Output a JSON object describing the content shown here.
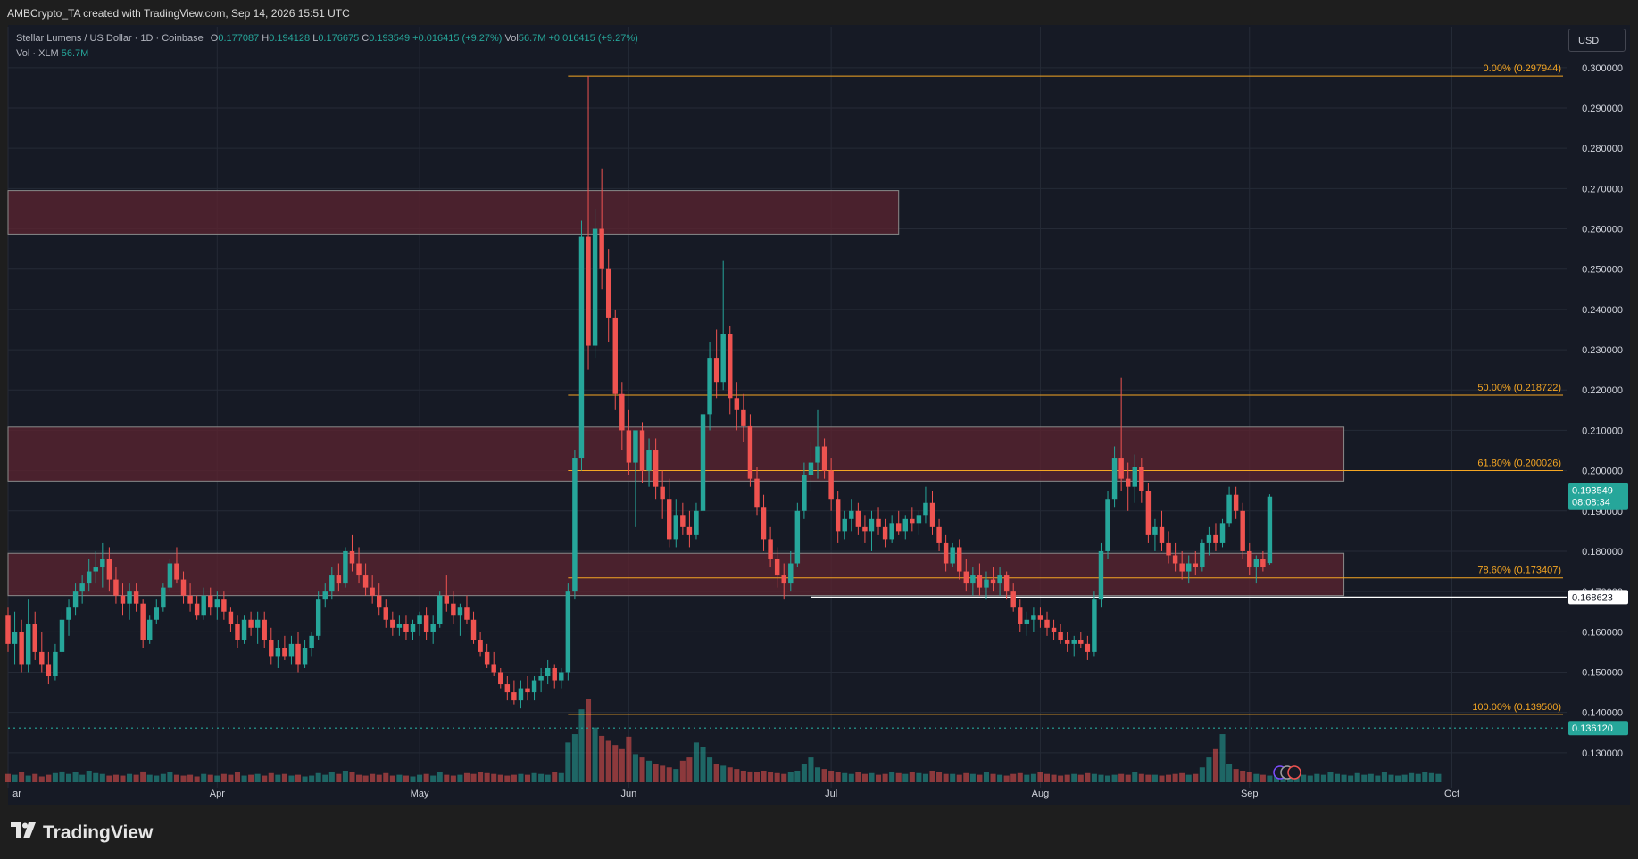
{
  "header": {
    "caption": "AMBCrypto_TA created with TradingView.com, Sep 14, 2026 15:51 UTC"
  },
  "legend": {
    "symbol": "Stellar Lumens / US Dollar · 1D · Coinbase",
    "o_label": "O",
    "o_value": "0.177087",
    "h_label": "H",
    "h_value": "0.194128",
    "l_label": "L",
    "l_value": "0.176675",
    "c_label": "C",
    "c_value": "0.193549",
    "change": "+0.016415 (+9.27%)",
    "vol_label": "Vol",
    "vol_value": "56.7M",
    "vol_change": "+0.016415 (+9.27%)",
    "vol_line_label": "Vol · XLM",
    "vol_line_value": "56.7M"
  },
  "toolbar": {
    "currency_label": "USD"
  },
  "brand": {
    "name": "TradingView"
  },
  "colors": {
    "background": "#161a25",
    "up": "#26a69a",
    "down": "#ef5350",
    "fib": "#f5a623",
    "zone": "#5a2430",
    "grid": "#252a36"
  },
  "chart_data": {
    "type": "candlestick",
    "title": "Stellar Lumens / US Dollar · 1D · Coinbase",
    "ylim": [
      0.122,
      0.3035
    ],
    "y_ticks": [
      "0.300000",
      "0.290000",
      "0.280000",
      "0.270000",
      "0.260000",
      "0.250000",
      "0.240000",
      "0.230000",
      "0.220000",
      "0.210000",
      "0.200000",
      "0.190000",
      "0.180000",
      "0.170000",
      "0.160000",
      "0.150000",
      "0.140000",
      "0.130000"
    ],
    "y_tick_values": [
      0.3,
      0.29,
      0.28,
      0.27,
      0.26,
      0.25,
      0.24,
      0.23,
      0.22,
      0.21,
      0.2,
      0.19,
      0.18,
      0.17,
      0.16,
      0.15,
      0.14,
      0.13
    ],
    "x_labels": [
      "ar",
      "Apr",
      "May",
      "Jun",
      "Jul",
      "Aug",
      "Sep",
      "Oct"
    ],
    "x_label_days": [
      0,
      31,
      61,
      92,
      122,
      153,
      184,
      214
    ],
    "day_range": [
      0,
      231
    ],
    "last_price": {
      "value": 0.193549,
      "label": "0.193549",
      "countdown": "08:08:34"
    },
    "support_line": {
      "value": 0.168623,
      "label": "0.168623",
      "start_day": 119
    },
    "dotted_line": {
      "value": 0.13612,
      "label": "0.136120"
    },
    "fib_levels": [
      {
        "label": "0.00% (0.297944)",
        "value": 0.297944
      },
      {
        "label": "50.00% (0.218722)",
        "value": 0.218722
      },
      {
        "label": "61.80% (0.200026)",
        "value": 0.200026
      },
      {
        "label": "78.60% (0.173407)",
        "value": 0.173407
      },
      {
        "label": "100.00% (0.139500)",
        "value": 0.1395
      }
    ],
    "fib_start_day": 83,
    "zones": [
      {
        "top": 0.2695,
        "bottom": 0.2587,
        "start_day": 0,
        "end_day": 132
      },
      {
        "top": 0.2108,
        "bottom": 0.1974,
        "start_day": 0,
        "end_day": 198
      },
      {
        "top": 0.1795,
        "bottom": 0.169,
        "start_day": 0,
        "end_day": 198
      }
    ],
    "ohlc": [
      [
        0.164,
        0.166,
        0.155,
        0.157
      ],
      [
        0.157,
        0.165,
        0.152,
        0.16
      ],
      [
        0.16,
        0.163,
        0.15,
        0.152
      ],
      [
        0.152,
        0.168,
        0.15,
        0.162
      ],
      [
        0.162,
        0.165,
        0.153,
        0.155
      ],
      [
        0.155,
        0.16,
        0.15,
        0.152
      ],
      [
        0.152,
        0.155,
        0.147,
        0.149
      ],
      [
        0.149,
        0.157,
        0.148,
        0.155
      ],
      [
        0.155,
        0.165,
        0.154,
        0.163
      ],
      [
        0.163,
        0.168,
        0.159,
        0.166
      ],
      [
        0.166,
        0.172,
        0.164,
        0.17
      ],
      [
        0.17,
        0.174,
        0.167,
        0.172
      ],
      [
        0.172,
        0.178,
        0.17,
        0.175
      ],
      [
        0.175,
        0.18,
        0.172,
        0.176
      ],
      [
        0.176,
        0.182,
        0.171,
        0.178
      ],
      [
        0.178,
        0.181,
        0.17,
        0.173
      ],
      [
        0.173,
        0.176,
        0.167,
        0.169
      ],
      [
        0.169,
        0.172,
        0.164,
        0.167
      ],
      [
        0.167,
        0.172,
        0.163,
        0.17
      ],
      [
        0.17,
        0.172,
        0.165,
        0.167
      ],
      [
        0.167,
        0.168,
        0.156,
        0.158
      ],
      [
        0.158,
        0.164,
        0.157,
        0.163
      ],
      [
        0.163,
        0.168,
        0.162,
        0.166
      ],
      [
        0.166,
        0.172,
        0.165,
        0.171
      ],
      [
        0.171,
        0.178,
        0.17,
        0.177
      ],
      [
        0.177,
        0.181,
        0.172,
        0.173
      ],
      [
        0.173,
        0.175,
        0.167,
        0.169
      ],
      [
        0.169,
        0.172,
        0.165,
        0.167
      ],
      [
        0.167,
        0.169,
        0.163,
        0.164
      ],
      [
        0.164,
        0.171,
        0.163,
        0.169
      ],
      [
        0.169,
        0.171,
        0.164,
        0.166
      ],
      [
        0.166,
        0.17,
        0.163,
        0.168
      ],
      [
        0.168,
        0.17,
        0.163,
        0.165
      ],
      [
        0.165,
        0.166,
        0.16,
        0.162
      ],
      [
        0.162,
        0.164,
        0.156,
        0.158
      ],
      [
        0.158,
        0.164,
        0.157,
        0.163
      ],
      [
        0.163,
        0.165,
        0.159,
        0.161
      ],
      [
        0.161,
        0.165,
        0.157,
        0.163
      ],
      [
        0.163,
        0.165,
        0.156,
        0.158
      ],
      [
        0.158,
        0.161,
        0.152,
        0.154
      ],
      [
        0.154,
        0.158,
        0.151,
        0.156
      ],
      [
        0.156,
        0.159,
        0.153,
        0.154
      ],
      [
        0.154,
        0.159,
        0.152,
        0.157
      ],
      [
        0.157,
        0.16,
        0.15,
        0.152
      ],
      [
        0.152,
        0.158,
        0.151,
        0.156
      ],
      [
        0.156,
        0.16,
        0.154,
        0.159
      ],
      [
        0.159,
        0.17,
        0.158,
        0.168
      ],
      [
        0.168,
        0.172,
        0.166,
        0.17
      ],
      [
        0.17,
        0.176,
        0.168,
        0.174
      ],
      [
        0.174,
        0.177,
        0.17,
        0.172
      ],
      [
        0.172,
        0.181,
        0.171,
        0.18
      ],
      [
        0.18,
        0.184,
        0.175,
        0.177
      ],
      [
        0.177,
        0.181,
        0.172,
        0.174
      ],
      [
        0.174,
        0.177,
        0.169,
        0.171
      ],
      [
        0.171,
        0.174,
        0.167,
        0.169
      ],
      [
        0.169,
        0.172,
        0.164,
        0.166
      ],
      [
        0.166,
        0.168,
        0.161,
        0.163
      ],
      [
        0.163,
        0.165,
        0.159,
        0.161
      ],
      [
        0.161,
        0.164,
        0.159,
        0.162
      ],
      [
        0.162,
        0.164,
        0.158,
        0.16
      ],
      [
        0.16,
        0.163,
        0.158,
        0.162
      ],
      [
        0.162,
        0.165,
        0.159,
        0.164
      ],
      [
        0.164,
        0.166,
        0.158,
        0.16
      ],
      [
        0.16,
        0.164,
        0.157,
        0.162
      ],
      [
        0.162,
        0.17,
        0.161,
        0.169
      ],
      [
        0.169,
        0.174,
        0.165,
        0.167
      ],
      [
        0.167,
        0.17,
        0.162,
        0.164
      ],
      [
        0.164,
        0.167,
        0.159,
        0.166
      ],
      [
        0.166,
        0.169,
        0.162,
        0.163
      ],
      [
        0.163,
        0.165,
        0.157,
        0.158
      ],
      [
        0.158,
        0.16,
        0.154,
        0.155
      ],
      [
        0.155,
        0.157,
        0.151,
        0.152
      ],
      [
        0.152,
        0.155,
        0.149,
        0.15
      ],
      [
        0.15,
        0.151,
        0.146,
        0.147
      ],
      [
        0.147,
        0.149,
        0.143,
        0.145
      ],
      [
        0.145,
        0.148,
        0.142,
        0.143
      ],
      [
        0.143,
        0.148,
        0.141,
        0.146
      ],
      [
        0.146,
        0.149,
        0.143,
        0.145
      ],
      [
        0.145,
        0.149,
        0.143,
        0.148
      ],
      [
        0.148,
        0.151,
        0.145,
        0.149
      ],
      [
        0.149,
        0.153,
        0.147,
        0.151
      ],
      [
        0.151,
        0.152,
        0.146,
        0.148
      ],
      [
        0.148,
        0.151,
        0.146,
        0.15
      ],
      [
        0.15,
        0.172,
        0.148,
        0.17
      ],
      [
        0.17,
        0.205,
        0.168,
        0.203
      ],
      [
        0.203,
        0.262,
        0.2,
        0.258
      ],
      [
        0.258,
        0.298,
        0.225,
        0.231
      ],
      [
        0.231,
        0.265,
        0.228,
        0.26
      ],
      [
        0.26,
        0.275,
        0.245,
        0.25
      ],
      [
        0.25,
        0.255,
        0.232,
        0.238
      ],
      [
        0.238,
        0.24,
        0.215,
        0.219
      ],
      [
        0.219,
        0.222,
        0.205,
        0.21
      ],
      [
        0.21,
        0.215,
        0.199,
        0.202
      ],
      [
        0.202,
        0.209,
        0.186,
        0.21
      ],
      [
        0.21,
        0.212,
        0.197,
        0.2
      ],
      [
        0.2,
        0.208,
        0.196,
        0.205
      ],
      [
        0.205,
        0.208,
        0.193,
        0.196
      ],
      [
        0.196,
        0.2,
        0.188,
        0.193
      ],
      [
        0.193,
        0.198,
        0.181,
        0.183
      ],
      [
        0.183,
        0.193,
        0.181,
        0.189
      ],
      [
        0.189,
        0.192,
        0.184,
        0.186
      ],
      [
        0.186,
        0.19,
        0.181,
        0.184
      ],
      [
        0.184,
        0.192,
        0.183,
        0.19
      ],
      [
        0.19,
        0.216,
        0.189,
        0.214
      ],
      [
        0.214,
        0.232,
        0.21,
        0.228
      ],
      [
        0.228,
        0.235,
        0.218,
        0.222
      ],
      [
        0.222,
        0.252,
        0.22,
        0.234
      ],
      [
        0.234,
        0.236,
        0.214,
        0.218
      ],
      [
        0.218,
        0.222,
        0.21,
        0.215
      ],
      [
        0.215,
        0.219,
        0.207,
        0.211
      ],
      [
        0.211,
        0.214,
        0.196,
        0.198
      ],
      [
        0.198,
        0.201,
        0.189,
        0.191
      ],
      [
        0.191,
        0.194,
        0.18,
        0.183
      ],
      [
        0.183,
        0.186,
        0.176,
        0.178
      ],
      [
        0.178,
        0.181,
        0.171,
        0.174
      ],
      [
        0.174,
        0.177,
        0.168,
        0.172
      ],
      [
        0.172,
        0.18,
        0.17,
        0.177
      ],
      [
        0.177,
        0.192,
        0.176,
        0.19
      ],
      [
        0.19,
        0.202,
        0.188,
        0.199
      ],
      [
        0.199,
        0.207,
        0.195,
        0.202
      ],
      [
        0.202,
        0.215,
        0.198,
        0.206
      ],
      [
        0.206,
        0.208,
        0.198,
        0.2
      ],
      [
        0.2,
        0.203,
        0.19,
        0.193
      ],
      [
        0.193,
        0.195,
        0.182,
        0.185
      ],
      [
        0.185,
        0.19,
        0.183,
        0.188
      ],
      [
        0.188,
        0.193,
        0.185,
        0.19
      ],
      [
        0.19,
        0.192,
        0.184,
        0.186
      ],
      [
        0.186,
        0.189,
        0.182,
        0.185
      ],
      [
        0.185,
        0.19,
        0.18,
        0.188
      ],
      [
        0.188,
        0.191,
        0.184,
        0.186
      ],
      [
        0.186,
        0.188,
        0.181,
        0.183
      ],
      [
        0.183,
        0.189,
        0.182,
        0.187
      ],
      [
        0.187,
        0.19,
        0.184,
        0.185
      ],
      [
        0.185,
        0.189,
        0.183,
        0.188
      ],
      [
        0.188,
        0.191,
        0.185,
        0.187
      ],
      [
        0.187,
        0.19,
        0.184,
        0.189
      ],
      [
        0.189,
        0.196,
        0.187,
        0.192
      ],
      [
        0.192,
        0.195,
        0.184,
        0.186
      ],
      [
        0.186,
        0.188,
        0.18,
        0.182
      ],
      [
        0.182,
        0.184,
        0.175,
        0.177
      ],
      [
        0.177,
        0.182,
        0.176,
        0.181
      ],
      [
        0.181,
        0.183,
        0.173,
        0.175
      ],
      [
        0.175,
        0.178,
        0.17,
        0.172
      ],
      [
        0.172,
        0.176,
        0.169,
        0.174
      ],
      [
        0.174,
        0.177,
        0.169,
        0.171
      ],
      [
        0.171,
        0.175,
        0.168,
        0.173
      ],
      [
        0.173,
        0.176,
        0.17,
        0.172
      ],
      [
        0.172,
        0.176,
        0.169,
        0.174
      ],
      [
        0.174,
        0.175,
        0.168,
        0.17
      ],
      [
        0.17,
        0.172,
        0.165,
        0.166
      ],
      [
        0.166,
        0.168,
        0.16,
        0.162
      ],
      [
        0.162,
        0.165,
        0.159,
        0.163
      ],
      [
        0.163,
        0.166,
        0.16,
        0.164
      ],
      [
        0.164,
        0.166,
        0.161,
        0.163
      ],
      [
        0.163,
        0.165,
        0.159,
        0.161
      ],
      [
        0.161,
        0.163,
        0.158,
        0.16
      ],
      [
        0.16,
        0.162,
        0.157,
        0.158
      ],
      [
        0.158,
        0.16,
        0.155,
        0.157
      ],
      [
        0.157,
        0.159,
        0.154,
        0.158
      ],
      [
        0.158,
        0.16,
        0.156,
        0.157
      ],
      [
        0.157,
        0.159,
        0.153,
        0.155
      ],
      [
        0.155,
        0.17,
        0.154,
        0.168
      ],
      [
        0.168,
        0.182,
        0.166,
        0.18
      ],
      [
        0.18,
        0.195,
        0.178,
        0.193
      ],
      [
        0.193,
        0.206,
        0.191,
        0.203
      ],
      [
        0.203,
        0.223,
        0.195,
        0.198
      ],
      [
        0.198,
        0.202,
        0.19,
        0.196
      ],
      [
        0.196,
        0.204,
        0.192,
        0.201
      ],
      [
        0.201,
        0.203,
        0.192,
        0.195
      ],
      [
        0.195,
        0.197,
        0.182,
        0.184
      ],
      [
        0.184,
        0.188,
        0.18,
        0.186
      ],
      [
        0.186,
        0.19,
        0.18,
        0.182
      ],
      [
        0.182,
        0.185,
        0.177,
        0.179
      ],
      [
        0.179,
        0.182,
        0.175,
        0.177
      ],
      [
        0.177,
        0.18,
        0.173,
        0.175
      ],
      [
        0.175,
        0.179,
        0.172,
        0.177
      ],
      [
        0.177,
        0.18,
        0.174,
        0.176
      ],
      [
        0.176,
        0.183,
        0.175,
        0.182
      ],
      [
        0.182,
        0.186,
        0.179,
        0.184
      ],
      [
        0.184,
        0.187,
        0.18,
        0.182
      ],
      [
        0.182,
        0.188,
        0.181,
        0.187
      ],
      [
        0.187,
        0.196,
        0.186,
        0.194
      ],
      [
        0.194,
        0.196,
        0.188,
        0.19
      ],
      [
        0.19,
        0.192,
        0.178,
        0.18
      ],
      [
        0.18,
        0.182,
        0.174,
        0.176
      ],
      [
        0.176,
        0.179,
        0.172,
        0.178
      ],
      [
        0.178,
        0.18,
        0.175,
        0.176
      ],
      [
        0.177087,
        0.194128,
        0.176675,
        0.193549
      ]
    ],
    "volume_scale_max": 100,
    "volume": [
      10,
      9,
      12,
      8,
      10,
      7,
      9,
      11,
      13,
      10,
      12,
      9,
      14,
      11,
      10,
      8,
      9,
      8,
      10,
      9,
      13,
      9,
      8,
      10,
      12,
      9,
      8,
      9,
      7,
      10,
      9,
      8,
      10,
      9,
      12,
      8,
      9,
      10,
      8,
      11,
      9,
      10,
      8,
      9,
      7,
      8,
      11,
      9,
      12,
      10,
      14,
      12,
      9,
      8,
      10,
      9,
      11,
      8,
      9,
      8,
      7,
      9,
      10,
      8,
      12,
      9,
      8,
      9,
      11,
      10,
      12,
      11,
      10,
      9,
      8,
      9,
      10,
      9,
      11,
      10,
      9,
      12,
      11,
      48,
      58,
      88,
      100,
      66,
      56,
      50,
      45,
      40,
      55,
      34,
      30,
      26,
      22,
      20,
      18,
      16,
      26,
      30,
      48,
      42,
      30,
      22,
      20,
      18,
      16,
      14,
      13,
      12,
      14,
      12,
      11,
      10,
      12,
      14,
      22,
      30,
      18,
      16,
      14,
      12,
      11,
      10,
      12,
      10,
      11,
      9,
      10,
      12,
      11,
      10,
      12,
      11,
      10,
      14,
      12,
      10,
      10,
      9,
      11,
      10,
      9,
      12,
      10,
      9,
      8,
      10,
      11,
      9,
      10,
      12,
      10,
      9,
      8,
      9,
      10,
      9,
      11,
      10,
      9,
      8,
      9,
      10,
      9,
      12,
      10,
      9,
      9,
      8,
      9,
      10,
      11,
      9,
      10,
      18,
      30,
      40,
      58,
      22,
      16,
      14,
      12,
      10,
      9,
      8,
      10,
      9,
      10,
      11,
      9,
      8,
      10,
      9,
      12,
      10,
      9,
      8,
      11,
      9,
      10,
      8,
      12,
      9,
      8,
      9,
      11,
      10,
      12,
      11,
      10
    ],
    "volume_colors_by_candle_direction": true
  }
}
